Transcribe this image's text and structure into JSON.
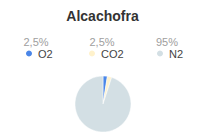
{
  "chart_data": {
    "type": "pie",
    "title": "Alcachofra",
    "categories": [
      "O2",
      "CO2",
      "N2"
    ],
    "values": [
      2.5,
      2.5,
      95
    ],
    "value_labels": [
      "2,5%",
      "2,5%",
      "95%"
    ],
    "colors": [
      "#4a86e8",
      "#fff2cc",
      "#d3dfe4"
    ],
    "legend": "top"
  }
}
